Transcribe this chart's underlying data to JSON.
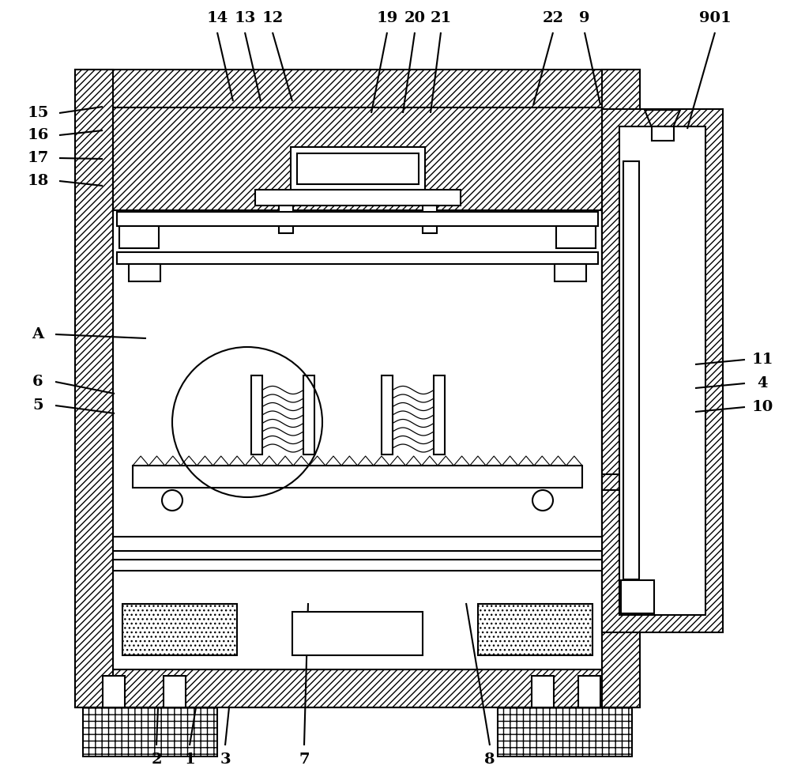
{
  "bg_color": "#ffffff",
  "line_color": "#000000",
  "lw": 1.5,
  "lw_thin": 0.8,
  "fig_width": 10.0,
  "fig_height": 9.83
}
